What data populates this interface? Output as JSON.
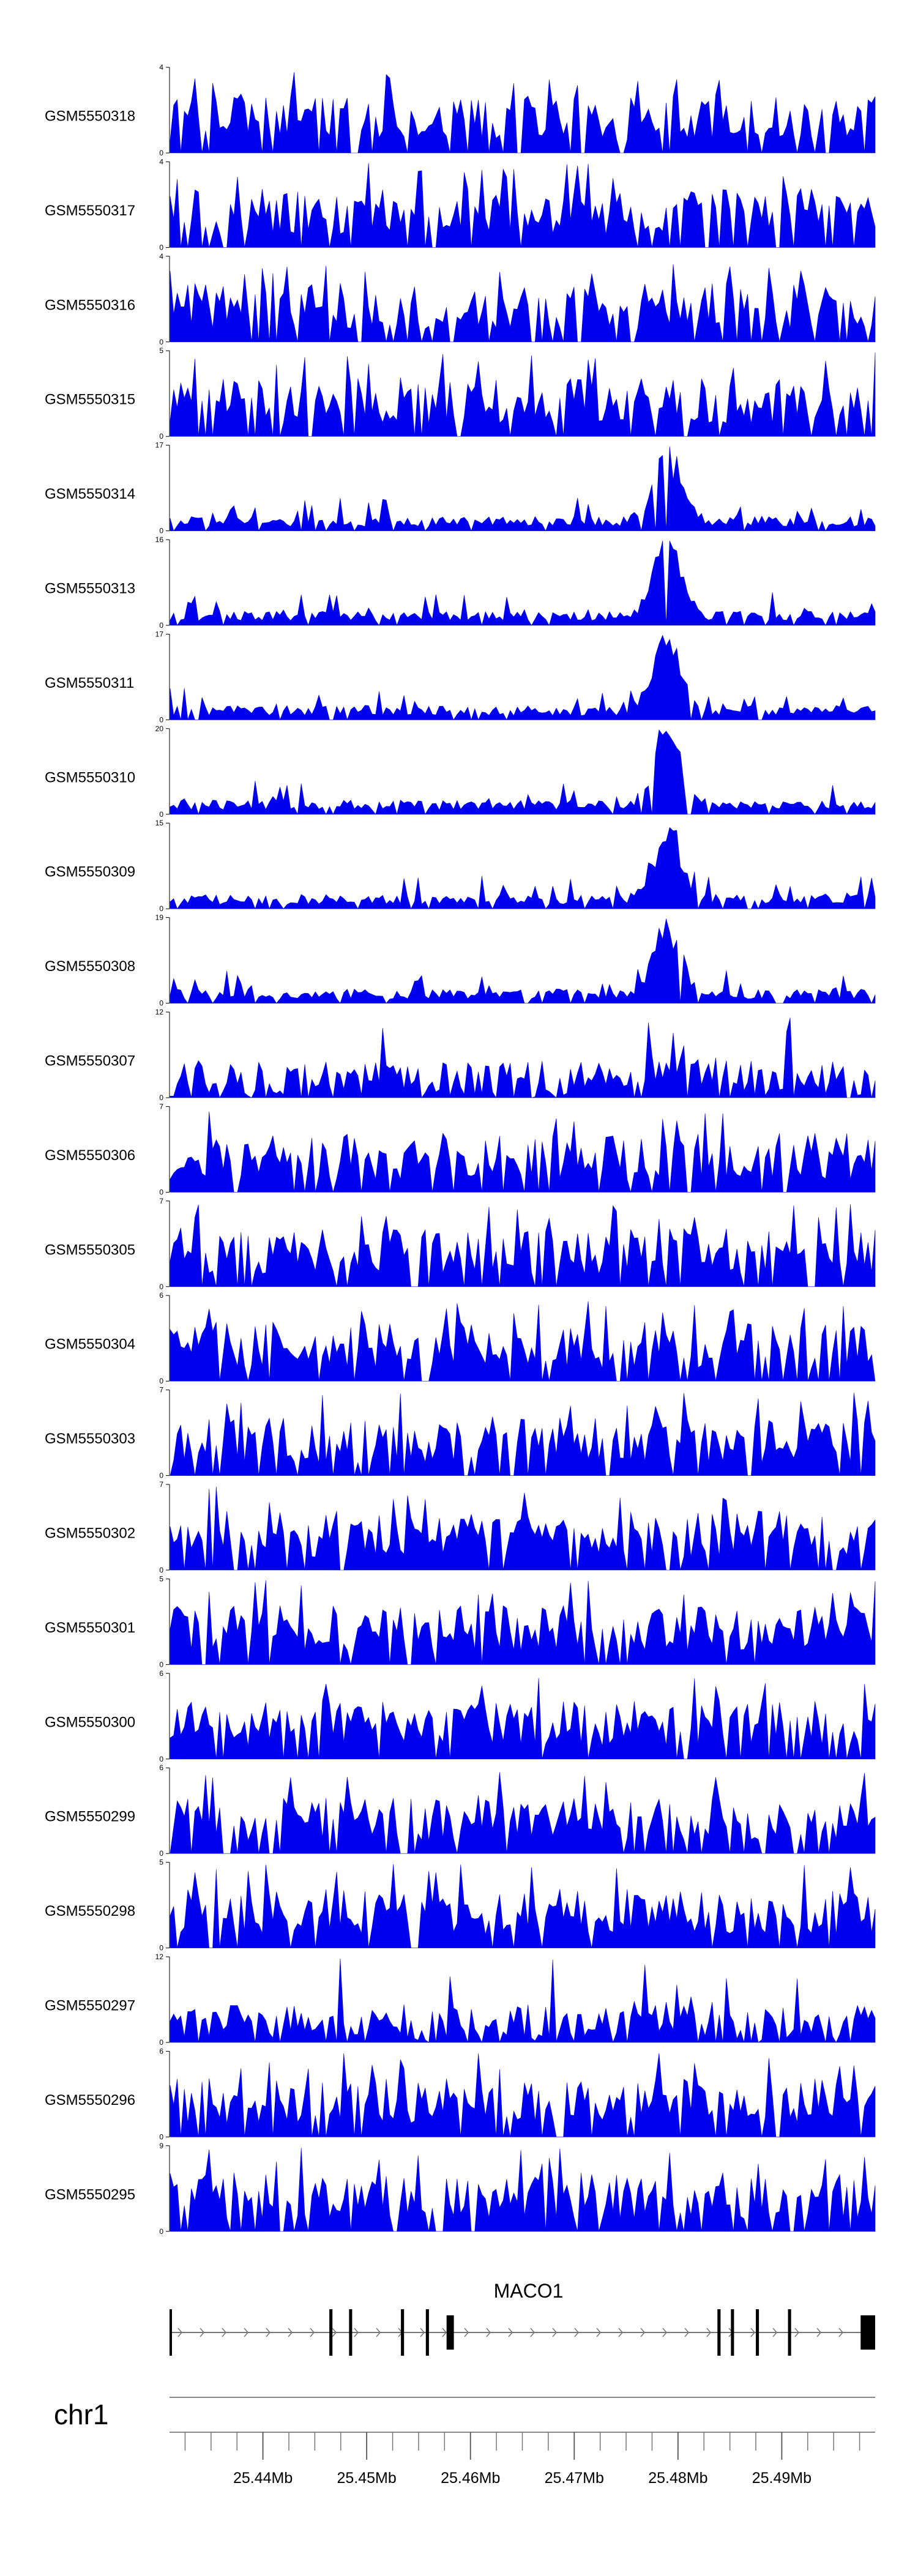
{
  "chart_data": {
    "type": "area",
    "chromosome": "chr1",
    "region_mb": [
      25.431,
      25.499
    ],
    "x_ticks_mb": [
      25.44,
      25.45,
      25.46,
      25.47,
      25.48,
      25.49
    ],
    "x_tick_labels": [
      "25.44Mb",
      "25.45Mb",
      "25.46Mb",
      "25.47Mb",
      "25.48Mb",
      "25.49Mb"
    ],
    "bins": 200,
    "color": "#0000EE",
    "tracks": [
      {
        "name": "GSM5550318",
        "ymax": 4,
        "profile": "flat",
        "seed": 11
      },
      {
        "name": "GSM5550317",
        "ymax": 4,
        "profile": "flat",
        "seed": 23
      },
      {
        "name": "GSM5550316",
        "ymax": 4,
        "profile": "flat",
        "seed": 37
      },
      {
        "name": "GSM5550315",
        "ymax": 5,
        "profile": "flat",
        "seed": 41
      },
      {
        "name": "GSM5550314",
        "ymax": 17,
        "profile": "peak",
        "seed": 53
      },
      {
        "name": "GSM5550313",
        "ymax": 16,
        "profile": "peak",
        "seed": 61
      },
      {
        "name": "GSM5550311",
        "ymax": 17,
        "profile": "peak",
        "seed": 71
      },
      {
        "name": "GSM5550310",
        "ymax": 20,
        "profile": "peak",
        "seed": 83
      },
      {
        "name": "GSM5550309",
        "ymax": 15,
        "profile": "peak",
        "seed": 97
      },
      {
        "name": "GSM5550308",
        "ymax": 19,
        "profile": "peak",
        "seed": 101
      },
      {
        "name": "GSM5550307",
        "ymax": 12,
        "profile": "mid",
        "seed": 113
      },
      {
        "name": "GSM5550306",
        "ymax": 7,
        "profile": "flat",
        "seed": 127
      },
      {
        "name": "GSM5550305",
        "ymax": 7,
        "profile": "flat",
        "seed": 131
      },
      {
        "name": "GSM5550304",
        "ymax": 6,
        "profile": "flat",
        "seed": 139
      },
      {
        "name": "GSM5550303",
        "ymax": 7,
        "profile": "flat",
        "seed": 149
      },
      {
        "name": "GSM5550302",
        "ymax": 7,
        "profile": "flat",
        "seed": 151
      },
      {
        "name": "GSM5550301",
        "ymax": 5,
        "profile": "flat",
        "seed": 163
      },
      {
        "name": "GSM5550300",
        "ymax": 6,
        "profile": "flat",
        "seed": 173
      },
      {
        "name": "GSM5550299",
        "ymax": 6,
        "profile": "flat",
        "seed": 181
      },
      {
        "name": "GSM5550298",
        "ymax": 5,
        "profile": "flat",
        "seed": 191
      },
      {
        "name": "GSM5550297",
        "ymax": 12,
        "profile": "mid",
        "seed": 193
      },
      {
        "name": "GSM5550296",
        "ymax": 6,
        "profile": "flat",
        "seed": 197
      },
      {
        "name": "GSM5550295",
        "ymax": 9,
        "profile": "flat",
        "seed": 199
      }
    ],
    "gene": {
      "name": "MACO1",
      "start_mb": 25.431,
      "end_mb": 25.499,
      "strand": "+",
      "exons_mb": [
        [
          25.431,
          25.4312
        ],
        [
          25.4464,
          25.4467
        ],
        [
          25.4483,
          25.4486
        ],
        [
          25.4533,
          25.4536
        ],
        [
          25.4557,
          25.456
        ],
        [
          25.4577,
          25.4584
        ],
        [
          25.4838,
          25.4841
        ],
        [
          25.4851,
          25.4854
        ],
        [
          25.4875,
          25.4878
        ],
        [
          25.4906,
          25.4909
        ],
        [
          25.4976,
          25.499
        ]
      ]
    }
  }
}
